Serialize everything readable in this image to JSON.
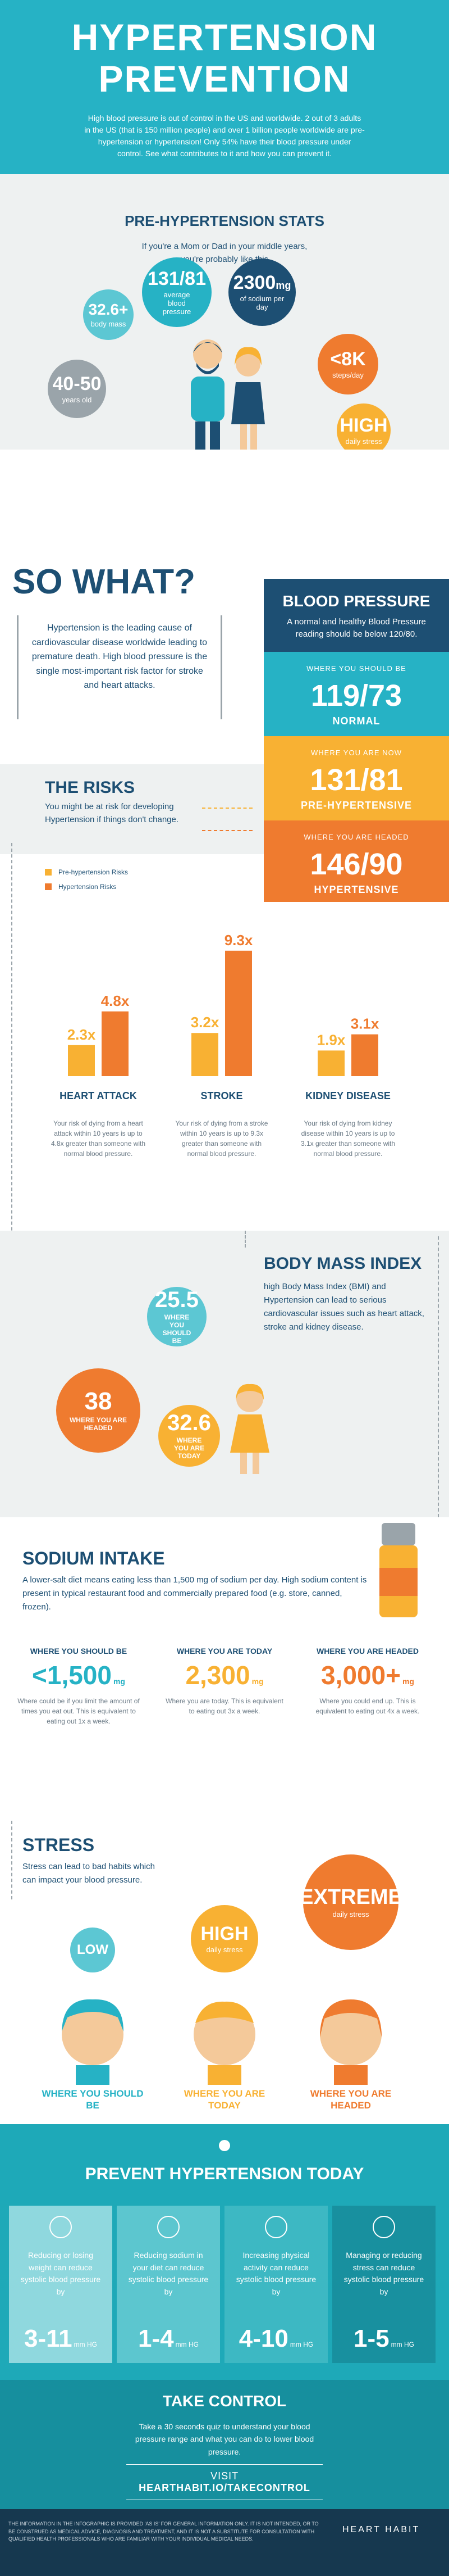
{
  "header": {
    "title_line1": "HYPERTENSION",
    "title_line2": "PREVENTION",
    "intro": "High blood pressure is out of control in the US and worldwide. 2 out of 3 adults in the US (that is 150 million people) and over 1 billion people worldwide are pre-hypertension or hypertension! Only 54% have their blood pressure under control. See what contributes to it and how you can prevent it."
  },
  "stats": {
    "title": "PRE-HYPERTENSION STATS",
    "subtitle": "If you're a Mom or Dad in your middle years, you're probably like this",
    "items": [
      {
        "value": "32.6+",
        "label": "body mass"
      },
      {
        "value": "131/81",
        "label": "average blood pressure"
      },
      {
        "value": "2300",
        "unit": "mg",
        "label": "of sodium per day"
      },
      {
        "value": "<8K",
        "label": "steps/day"
      },
      {
        "value": "40-50",
        "label": "years old"
      },
      {
        "value": "HIGH",
        "label": "daily stress"
      }
    ]
  },
  "so_what": {
    "title": "SO WHAT?",
    "quote": "Hypertension is the leading cause of cardiovascular disease worldwide leading to premature death. High blood pressure is the single most-important risk factor for stroke and heart attacks."
  },
  "blood_pressure": {
    "title": "BLOOD PRESSURE",
    "text": "A normal and healthy Blood Pressure reading should be below 120/80.",
    "levels": [
      {
        "heading": "WHERE YOU SHOULD BE",
        "value": "119/73",
        "label": "NORMAL"
      },
      {
        "heading": "WHERE YOU ARE NOW",
        "value": "131/81",
        "label": "PRE-HYPERTENSIVE"
      },
      {
        "heading": "WHERE YOU ARE HEADED",
        "value": "146/90",
        "label": "HYPERTENSIVE"
      }
    ]
  },
  "risks": {
    "title": "THE RISKS",
    "text": "You might be at risk for developing Hypertension if things don't change."
  },
  "chart_data": {
    "type": "bar",
    "categories": [
      "HEART ATTACK",
      "STROKE",
      "KIDNEY DISEASE"
    ],
    "series": [
      {
        "name": "Pre-hypertension Risks",
        "color": "#f8b133",
        "values": [
          2.3,
          3.2,
          1.9
        ],
        "value_labels": [
          "2.3x",
          "3.2x",
          "1.9x"
        ]
      },
      {
        "name": "Hypertension Risks",
        "color": "#ef7b2f",
        "values": [
          4.8,
          9.3,
          3.1
        ],
        "value_labels": [
          "4.8x",
          "9.3x",
          "3.1x"
        ]
      }
    ],
    "descriptions": [
      "Your risk of dying from a heart attack within 10 years is up to 4.8x greater than someone with normal blood pressure.",
      "Your risk of dying from a stroke within 10 years is up to 9.3x greater than someone with normal blood pressure.",
      "Your risk of dying from kidney disease within 10 years is up to 3.1x greater than someone with normal blood pressure."
    ]
  },
  "bmi": {
    "title": "BODY MASS INDEX",
    "text": "high Body Mass Index (BMI) and Hypertension can lead to serious cardiovascular issues such as heart attack, stroke and kidney disease.",
    "items": [
      {
        "value": "25.5",
        "label": "WHERE YOU SHOULD BE"
      },
      {
        "value": "38",
        "label": "WHERE YOU ARE HEADED"
      },
      {
        "value": "32.6",
        "label": "WHERE YOU ARE TODAY"
      }
    ]
  },
  "sodium": {
    "title": "SODIUM INTAKE",
    "text": "A lower-salt diet means eating less than 1,500 mg of sodium per day. High sodium content is present in typical restaurant food and commercially prepared food (e.g. store, canned, frozen).",
    "items": [
      {
        "heading": "WHERE YOU SHOULD BE",
        "value": "<1,500",
        "unit": "mg",
        "text": "Where could be if you limit the amount of times you eat out. This is equivalent to eating out 1x a week."
      },
      {
        "heading": "WHERE YOU ARE TODAY",
        "value": "2,300",
        "unit": "mg",
        "text": "Where you are today. This is equivalent to eating out 3x a week."
      },
      {
        "heading": "WHERE YOU ARE HEADED",
        "value": "3,000+",
        "unit": "mg",
        "text": "Where you could end up. This is equivalent to eating out 4x a week."
      }
    ]
  },
  "stress": {
    "title": "STRESS",
    "text": "Stress can lead to bad habits which can impact your blood pressure.",
    "levels": [
      {
        "value": "LOW",
        "label": "WHERE YOU SHOULD BE"
      },
      {
        "value": "HIGH",
        "sub": "daily stress",
        "label": "WHERE YOU ARE TODAY"
      },
      {
        "value": "EXTREME",
        "sub": "daily stress",
        "label": "WHERE YOU ARE HEADED"
      }
    ]
  },
  "prevent": {
    "title": "PREVENT HYPERTENSION TODAY",
    "cards": [
      {
        "text": "Reducing or losing weight can reduce systolic blood pressure by",
        "value": "3-11",
        "unit": "mm HG"
      },
      {
        "text": "Reducing sodium in your diet can reduce systolic blood pressure by",
        "value": "1-4",
        "unit": "mm HG"
      },
      {
        "text": "Increasing physical activity can reduce systolic blood pressure by",
        "value": "4-10",
        "unit": "mm HG"
      },
      {
        "text": "Managing or reducing stress can reduce systolic blood pressure by",
        "value": "1-5",
        "unit": "mm HG"
      }
    ]
  },
  "take_control": {
    "title": "TAKE CONTROL",
    "text": "Take a 30 seconds quiz to understand your blood pressure range and what you can do to lower blood pressure.",
    "link_prefix": "VISIT",
    "link": "HEARTHABIT.IO/TAKECONTROL"
  },
  "footer": {
    "disclaimer": "THE INFORMATION IN THE INFOGRAPHIC IS PROVIDED 'AS IS' FOR GENERAL INFORMATION ONLY. IT IS NOT INTENDED, OR TO BE CONSTRUED AS MEDICAL ADVICE, DIAGNOSIS AND TREATMENT, AND IT IS NOT A SUBSTITUTE FOR CONSULTATION WITH QUALIFIED HEALTH PROFESSIONALS WHO ARE FAMILIAR WITH YOUR INDIVIDUAL MEDICAL NEEDS.",
    "brand": "HEART HABIT"
  }
}
